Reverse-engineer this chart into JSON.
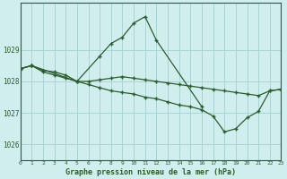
{
  "title": "Graphe pression niveau de la mer (hPa)",
  "background_color": "#d0eeee",
  "grid_color": "#aad4d4",
  "line_color": "#2a5e2a",
  "x_min": 0,
  "x_max": 23,
  "y_min": 1025.5,
  "y_max": 1030.5,
  "y_ticks": [
    1026,
    1027,
    1028,
    1029
  ],
  "x_ticks": [
    0,
    1,
    2,
    3,
    4,
    5,
    6,
    7,
    8,
    9,
    10,
    11,
    12,
    13,
    14,
    15,
    16,
    17,
    18,
    19,
    20,
    21,
    22,
    23
  ],
  "series": [
    {
      "x": [
        0,
        1,
        2,
        3,
        4,
        5,
        6,
        7,
        8,
        9,
        10,
        11,
        12,
        13,
        14,
        15,
        16,
        17,
        18,
        19,
        20,
        21,
        22,
        23
      ],
      "y": [
        1028.4,
        1028.5,
        null,
        null,
        null,
        1028.0,
        null,
        1028.8,
        1029.2,
        1029.4,
        1029.85,
        1030.05,
        1029.3,
        null,
        null,
        null,
        1027.2,
        null,
        null,
        null,
        null,
        null,
        null,
        null
      ]
    },
    {
      "x": [
        0,
        1,
        2,
        3,
        4,
        5,
        6,
        7,
        8,
        9,
        10,
        11,
        12,
        13,
        14,
        15,
        16,
        17,
        18,
        19,
        20,
        21,
        22,
        23
      ],
      "y": [
        1028.4,
        1028.5,
        1028.35,
        1028.3,
        1028.2,
        1028.0,
        1028.0,
        1028.05,
        1028.1,
        1028.15,
        1028.1,
        1028.05,
        1028.0,
        1027.95,
        1027.9,
        1027.85,
        1027.8,
        1027.75,
        1027.7,
        1027.65,
        1027.6,
        1027.55,
        1027.7,
        1027.75
      ]
    },
    {
      "x": [
        0,
        1,
        2,
        3,
        4,
        5,
        6,
        7,
        8,
        9,
        10,
        11,
        12,
        13,
        14,
        15,
        16,
        17,
        18,
        19,
        20,
        21,
        22,
        23
      ],
      "y": [
        1028.4,
        1028.5,
        1028.3,
        1028.2,
        1028.1,
        1028.0,
        1027.9,
        1027.8,
        1027.7,
        1027.65,
        1027.6,
        1027.5,
        1027.45,
        1027.35,
        1027.25,
        1027.2,
        1027.1,
        1026.9,
        1026.4,
        1026.5,
        1026.85,
        1027.05,
        1027.7,
        1027.75
      ]
    }
  ]
}
